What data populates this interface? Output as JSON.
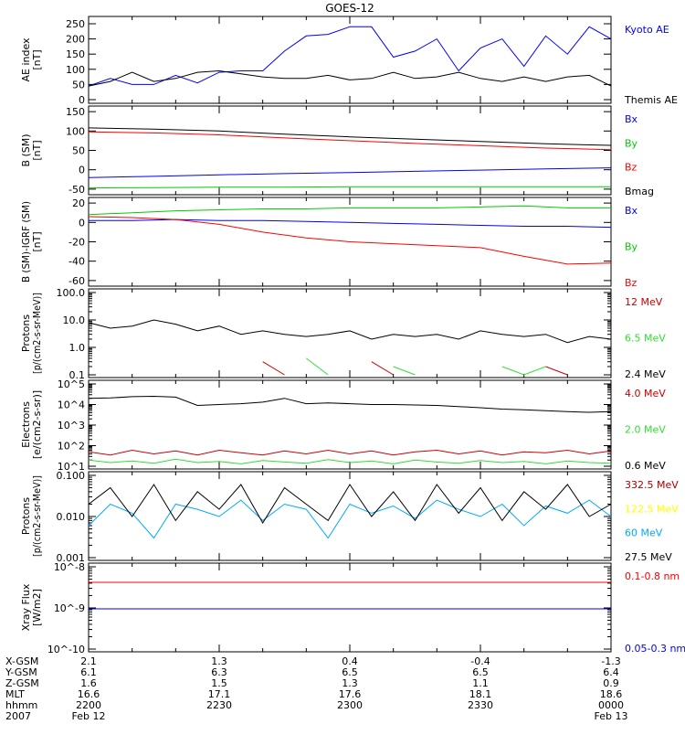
{
  "title": "GOES-12",
  "chart_data": [
    {
      "type": "line",
      "ylabel": [
        "AE index",
        "[nT]"
      ],
      "log": false,
      "ylim": [
        0,
        262
      ],
      "yticks": [
        0,
        50,
        100,
        150,
        200,
        250
      ],
      "ytick_labels": [
        "0",
        "50",
        "100",
        "150",
        "200",
        "250"
      ],
      "series": [
        {
          "name": "Kyoto AE",
          "color": "#0000ff",
          "values": [
            45,
            70,
            50,
            50,
            80,
            55,
            90,
            95,
            95,
            160,
            210,
            215,
            240,
            240,
            140,
            160,
            200,
            95,
            170,
            200,
            110,
            210,
            150,
            240,
            200
          ]
        },
        {
          "name": "Themis AE",
          "color": "#000000",
          "values": [
            45,
            60,
            90,
            60,
            70,
            90,
            95,
            85,
            75,
            70,
            70,
            80,
            65,
            70,
            90,
            70,
            75,
            90,
            70,
            60,
            75,
            60,
            75,
            80,
            45
          ]
        }
      ]
    },
    {
      "type": "line",
      "ylabel": [
        "B (SM)",
        "[nT]"
      ],
      "log": false,
      "ylim": [
        -55,
        155
      ],
      "yticks": [
        -50,
        0,
        50,
        100,
        150
      ],
      "ytick_labels": [
        "-50",
        "0",
        "50",
        "100",
        "150"
      ],
      "series": [
        {
          "name": "Bx",
          "color": "#0000ff",
          "values": [
            -20,
            -17,
            -13,
            -10,
            -7,
            -4,
            -1,
            2,
            5
          ]
        },
        {
          "name": "By",
          "color": "#00cc00",
          "values": [
            -47,
            -46,
            -45,
            -45,
            -44,
            -44,
            -44,
            -44,
            -44
          ]
        },
        {
          "name": "Bz",
          "color": "#ff0000",
          "values": [
            98,
            95,
            90,
            82,
            75,
            68,
            62,
            56,
            52
          ]
        },
        {
          "name": "Bmag",
          "color": "#000000",
          "values": [
            108,
            105,
            100,
            92,
            85,
            79,
            73,
            67,
            63
          ]
        }
      ]
    },
    {
      "type": "line",
      "ylabel": [
        "B (SM)-IGRF (SM)",
        "[nT]"
      ],
      "log": false,
      "ylim": [
        -62,
        22
      ],
      "yticks": [
        -60,
        -40,
        -20,
        0,
        20
      ],
      "ytick_labels": [
        "-60",
        "-40",
        "-20",
        "0",
        "20"
      ],
      "series": [
        {
          "name": "Bx",
          "color": "#0000ff",
          "values": [
            2,
            2,
            3,
            2,
            2,
            1,
            0,
            -1,
            -2,
            -3,
            -4,
            -4,
            -5
          ]
        },
        {
          "name": "By",
          "color": "#00cc00",
          "values": [
            8,
            10,
            12,
            13,
            14,
            14,
            15,
            15,
            15,
            16,
            17,
            15,
            15
          ]
        },
        {
          "name": "Bz",
          "color": "#ff0000",
          "values": [
            6,
            5,
            3,
            -2,
            -10,
            -16,
            -20,
            -22,
            -24,
            -26,
            -35,
            -43,
            -42
          ]
        }
      ]
    },
    {
      "type": "line",
      "ylabel": [
        "Protons",
        "[p/(cm2-s-sr-MeV)]"
      ],
      "log": true,
      "ylim": [
        0.1,
        100
      ],
      "yticks": [
        0.1,
        1,
        10,
        100
      ],
      "ytick_labels": [
        "0.1",
        "1.0",
        "10.0",
        "100.0"
      ],
      "series": [
        {
          "name": "12 MeV",
          "color": "#cc0000",
          "values": [
            null,
            null,
            null,
            null,
            null,
            null,
            null,
            null,
            0.3,
            0.1,
            null,
            null,
            null,
            0.3,
            0.1,
            null,
            null,
            null,
            null,
            null,
            null,
            0.2,
            0.1,
            null,
            null
          ]
        },
        {
          "name": "6.5 MeV",
          "color": "#33dd33",
          "values": [
            null,
            null,
            null,
            null,
            null,
            null,
            null,
            null,
            null,
            null,
            0.4,
            0.1,
            null,
            null,
            0.2,
            0.1,
            null,
            null,
            null,
            0.2,
            0.1,
            0.2,
            null,
            0.2,
            null
          ]
        },
        {
          "name": "2.4 MeV",
          "color": "#000000",
          "values": [
            8,
            5,
            6,
            10,
            7,
            4,
            6,
            3,
            4,
            3,
            2.5,
            3,
            4,
            2,
            3,
            2.5,
            3,
            2,
            4,
            3,
            2.5,
            3,
            1.5,
            2.5,
            2
          ]
        }
      ]
    },
    {
      "type": "line",
      "ylabel": [
        "Electrons",
        "[e/(cm2-s-sr)]"
      ],
      "log": true,
      "ylim": [
        10,
        100000
      ],
      "yticks": [
        10,
        100,
        1000,
        10000,
        100000
      ],
      "ytick_labels": [
        "10^1",
        "10^2",
        "10^3",
        "10^4",
        "10^5"
      ],
      "series": [
        {
          "name": "4.0 MeV",
          "color": "#cc0000",
          "values": [
            50,
            35,
            60,
            40,
            55,
            35,
            60,
            45,
            35,
            55,
            40,
            60,
            40,
            55,
            35,
            50,
            60,
            40,
            55,
            35,
            50,
            45,
            60,
            40,
            55
          ]
        },
        {
          "name": "2.0 MeV",
          "color": "#33dd33",
          "values": [
            20,
            15,
            18,
            14,
            22,
            15,
            17,
            13,
            19,
            16,
            14,
            21,
            15,
            18,
            13,
            20,
            16,
            14,
            19,
            15,
            17,
            13,
            18,
            15,
            14
          ]
        },
        {
          "name": "0.6 MeV",
          "color": "#000000",
          "values": [
            20000,
            21000,
            24000,
            25000,
            23000,
            9000,
            10000,
            11000,
            13000,
            20000,
            11000,
            12000,
            11000,
            10000,
            10000,
            9500,
            9000,
            8000,
            7000,
            6000,
            5500,
            5000,
            4500,
            4200,
            4500
          ]
        }
      ]
    },
    {
      "type": "line",
      "ylabel": [
        "Protons",
        "[p/(cm2-s-sr-MeV)]"
      ],
      "log": true,
      "ylim": [
        0.001,
        0.1
      ],
      "yticks": [
        0.001,
        0.01,
        0.1
      ],
      "ytick_labels": [
        "0.001",
        "0.010",
        "0.100"
      ],
      "series": [
        {
          "name": "332.5 MeV",
          "color": "#aa0000",
          "values": []
        },
        {
          "name": "122.5 MeV",
          "color": "#ffff00",
          "values": []
        },
        {
          "name": "60 MeV",
          "color": "#00aaff",
          "values": [
            0.006,
            0.02,
            0.012,
            0.003,
            0.02,
            0.015,
            0.01,
            0.025,
            0.008,
            0.02,
            0.015,
            0.003,
            0.02,
            0.012,
            0.018,
            0.009,
            0.025,
            0.015,
            0.01,
            0.02,
            0.006,
            0.018,
            0.012,
            0.025,
            0.01
          ]
        },
        {
          "name": "27.5 MeV",
          "color": "#000000",
          "values": [
            0.02,
            0.05,
            0.01,
            0.06,
            0.008,
            0.04,
            0.015,
            0.06,
            0.007,
            0.05,
            0.02,
            0.008,
            0.06,
            0.01,
            0.04,
            0.008,
            0.06,
            0.012,
            0.05,
            0.008,
            0.04,
            0.015,
            0.06,
            0.01,
            0.02
          ]
        }
      ]
    },
    {
      "type": "line",
      "ylabel": [
        "Xray Flux",
        "[W/m2]"
      ],
      "log": true,
      "ylim": [
        1e-10,
        1e-08
      ],
      "yticks": [
        1e-10,
        1e-09,
        1e-08
      ],
      "ytick_labels": [
        "10^-10",
        "10^-9",
        "10^-8"
      ],
      "series": [
        {
          "name": "0.1-0.8 nm",
          "color": "#ff0000",
          "values": [
            4.2e-09,
            4.2e-09
          ]
        },
        {
          "name": "0.05-0.3 nm",
          "color": "#0000ff",
          "values": [
            9.5e-10,
            9.5e-10
          ]
        }
      ]
    }
  ],
  "ephemeris": {
    "rows": [
      {
        "label": "X-GSM",
        "values": [
          "2.1",
          "1.3",
          "0.4",
          "-0.4",
          "-1.3"
        ]
      },
      {
        "label": "Y-GSM",
        "values": [
          "6.1",
          "6.3",
          "6.5",
          "6.5",
          "6.4"
        ]
      },
      {
        "label": "Z-GSM",
        "values": [
          "1.6",
          "1.5",
          "1.3",
          "1.1",
          "0.9"
        ]
      },
      {
        "label": "MLT",
        "values": [
          "16.6",
          "17.1",
          "17.6",
          "18.1",
          "18.6"
        ]
      },
      {
        "label": "hhmm",
        "values": [
          "2200",
          "2230",
          "2300",
          "2330",
          "0000"
        ]
      },
      {
        "label": "2007",
        "values": [
          "Feb 12",
          "",
          "",
          "",
          "Feb 13"
        ]
      }
    ]
  }
}
